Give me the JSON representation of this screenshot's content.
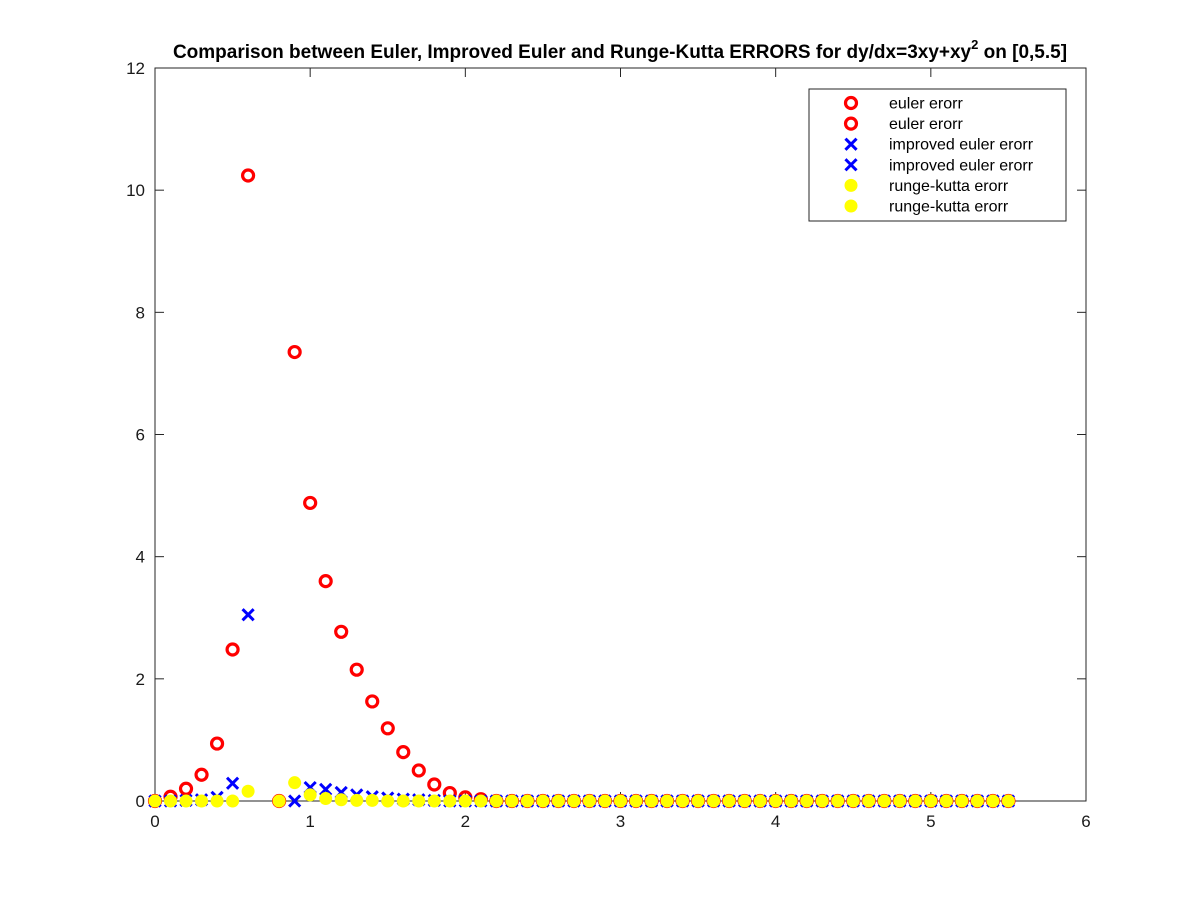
{
  "chart_data": {
    "type": "scatter",
    "title": "Comparison between Euler, Improved Euler and Runge-Kutta ERRORS for dy/dx=3xy+xy",
    "title_superscript": "2",
    "title_suffix": " on [0,5.5]",
    "xlabel": "",
    "ylabel": "",
    "xlim": [
      0,
      6
    ],
    "ylim": [
      0,
      12
    ],
    "xticks": [
      "0",
      "1",
      "2",
      "3",
      "4",
      "5",
      "6"
    ],
    "yticks": [
      "0",
      "2",
      "4",
      "6",
      "8",
      "10",
      "12"
    ],
    "grid": false,
    "legend_position": "top-right",
    "series": [
      {
        "name": "euler erorr",
        "marker": "circle-open",
        "color": "#ff0000",
        "x": [
          0,
          0.1,
          0.2,
          0.3,
          0.4,
          0.5,
          0.6,
          0.8,
          0.9,
          1.0,
          1.1,
          1.2,
          1.3,
          1.4,
          1.5,
          1.6,
          1.7,
          1.8,
          1.9,
          2.0,
          2.1,
          2.2,
          2.3,
          2.4,
          2.5,
          2.6,
          2.7,
          2.8,
          2.9,
          3.0,
          3.1,
          3.2,
          3.3,
          3.4,
          3.5,
          3.6,
          3.7,
          3.8,
          3.9,
          4.0,
          4.1,
          4.2,
          4.3,
          4.4,
          4.5,
          4.6,
          4.7,
          4.8,
          4.9,
          5.0,
          5.1,
          5.2,
          5.3,
          5.4,
          5.5
        ],
        "y": [
          0,
          0.07,
          0.2,
          0.43,
          0.94,
          2.48,
          10.24,
          0,
          7.35,
          4.88,
          3.6,
          2.77,
          2.15,
          1.63,
          1.19,
          0.8,
          0.5,
          0.27,
          0.13,
          0.06,
          0.03,
          0,
          0,
          0,
          0,
          0,
          0,
          0,
          0,
          0,
          0,
          0,
          0,
          0,
          0,
          0,
          0,
          0,
          0,
          0,
          0,
          0,
          0,
          0,
          0,
          0,
          0,
          0,
          0,
          0,
          0,
          0,
          0,
          0,
          0
        ]
      },
      {
        "name": "euler erorr",
        "marker": "circle-open",
        "color": "#ff0000",
        "x": [],
        "y": []
      },
      {
        "name": "improved euler erorr",
        "marker": "x",
        "color": "#0000ff",
        "x": [
          0,
          0.1,
          0.2,
          0.3,
          0.4,
          0.5,
          0.6,
          0.9,
          1.0,
          1.1,
          1.2,
          1.3,
          1.4,
          1.5,
          1.6,
          1.7,
          1.8,
          1.9,
          2.0,
          2.1,
          2.2,
          2.3,
          2.4,
          2.5,
          2.6,
          2.7,
          2.8,
          2.9,
          3.0,
          3.1,
          3.2,
          3.3,
          3.4,
          3.5,
          3.6,
          3.7,
          3.8,
          3.9,
          4.0,
          4.1,
          4.2,
          4.3,
          4.4,
          4.5,
          4.6,
          4.7,
          4.8,
          4.9,
          5.0,
          5.1,
          5.2,
          5.3,
          5.4,
          5.5
        ],
        "y": [
          0,
          0,
          0.01,
          0.02,
          0.06,
          0.29,
          3.05,
          0,
          0.22,
          0.19,
          0.14,
          0.1,
          0.07,
          0.05,
          0.03,
          0.02,
          0.01,
          0,
          0,
          0,
          0,
          0,
          0,
          0,
          0,
          0,
          0,
          0,
          0,
          0,
          0,
          0,
          0,
          0,
          0,
          0,
          0,
          0,
          0,
          0,
          0,
          0,
          0,
          0,
          0,
          0,
          0,
          0,
          0,
          0,
          0,
          0,
          0,
          0
        ]
      },
      {
        "name": "improved euler erorr",
        "marker": "x",
        "color": "#0000ff",
        "x": [],
        "y": []
      },
      {
        "name": "runge-kutta erorr",
        "marker": "circle-filled",
        "color": "#ffff00",
        "x": [
          0,
          0.1,
          0.2,
          0.3,
          0.4,
          0.5,
          0.6,
          0.8,
          0.9,
          1.0,
          1.1,
          1.2,
          1.3,
          1.4,
          1.5,
          1.6,
          1.7,
          1.8,
          1.9,
          2.0,
          2.1,
          2.2,
          2.3,
          2.4,
          2.5,
          2.6,
          2.7,
          2.8,
          2.9,
          3.0,
          3.1,
          3.2,
          3.3,
          3.4,
          3.5,
          3.6,
          3.7,
          3.8,
          3.9,
          4.0,
          4.1,
          4.2,
          4.3,
          4.4,
          4.5,
          4.6,
          4.7,
          4.8,
          4.9,
          5.0,
          5.1,
          5.2,
          5.3,
          5.4,
          5.5
        ],
        "y": [
          0,
          0,
          0,
          0,
          0,
          0,
          0.16,
          0,
          0.3,
          0.1,
          0.04,
          0.02,
          0.01,
          0.01,
          0,
          0,
          0,
          0,
          0,
          0,
          0,
          0,
          0,
          0,
          0,
          0,
          0,
          0,
          0,
          0,
          0,
          0,
          0,
          0,
          0,
          0,
          0,
          0,
          0,
          0,
          0,
          0,
          0,
          0,
          0,
          0,
          0,
          0,
          0,
          0,
          0,
          0,
          0,
          0,
          0
        ]
      },
      {
        "name": "runge-kutta erorr",
        "marker": "circle-filled",
        "color": "#ffff00",
        "x": [],
        "y": []
      }
    ]
  }
}
